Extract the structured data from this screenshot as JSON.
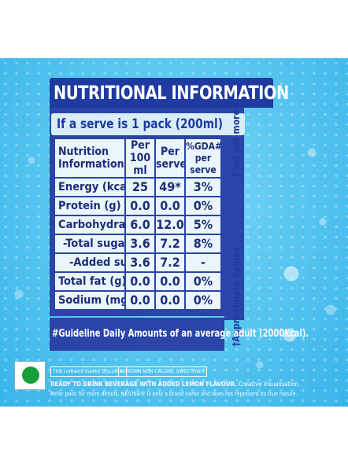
{
  "panel": {
    "title": "NUTRITIONAL INFORMATION",
    "serve": "If a serve is 1 pack (200ml)",
    "find_out_more": "Find out more",
    "approximate_values": "†Approximate values",
    "footnote": "#Guideline Daily Amounts of an average adult (2000kcal)."
  },
  "table": {
    "headers": {
      "nutrition": "Nutrition Information†",
      "per100": "Per 100 ml",
      "perserve": "Per serve",
      "gda": "%GDA# per serve"
    },
    "rows": [
      {
        "label": "Energy (kcal)",
        "per100": "25",
        "perserve": "49*",
        "gda": "3%"
      },
      {
        "label": "Protein (g)",
        "per100": "0.0",
        "perserve": "0.0",
        "gda": "0%"
      },
      {
        "label": "Carbohydrate (g)",
        "per100": "6.0",
        "perserve": "12.0",
        "gda": "5%"
      },
      {
        "label": "-Total sugars (g)",
        "per100": "3.6",
        "perserve": "7.2",
        "gda": "8%"
      },
      {
        "label": "-Added sugars(g)",
        "per100": "3.6",
        "perserve": "7.2",
        "gda": "-"
      },
      {
        "label": "Total fat (g)",
        "per100": "0.0",
        "perserve": "0.0",
        "gda": "0%"
      },
      {
        "label": "Sodium (mg)",
        "per100": "0.0",
        "perserve": "0.0",
        "gda": "0%"
      }
    ]
  },
  "legal": {
    "stevia": "This contains Steviol Glycoside",
    "no_calorie": "CONTAIN NON CALORIC SWEETENER",
    "rtd": "READY TO DRINK BEVERAGE WITH ADDED LEMON FLAVOUR.",
    "creative": "Creative Visualisation.",
    "refer": "Refer pack for more details. NESTEA® is only a brand name and does not represent its true nature."
  },
  "colors": {
    "background": "#5cc8f1",
    "panel_blue": "#2a44a8",
    "table_bg": "#eaf6fc",
    "veg_mark": "#16a039"
  }
}
